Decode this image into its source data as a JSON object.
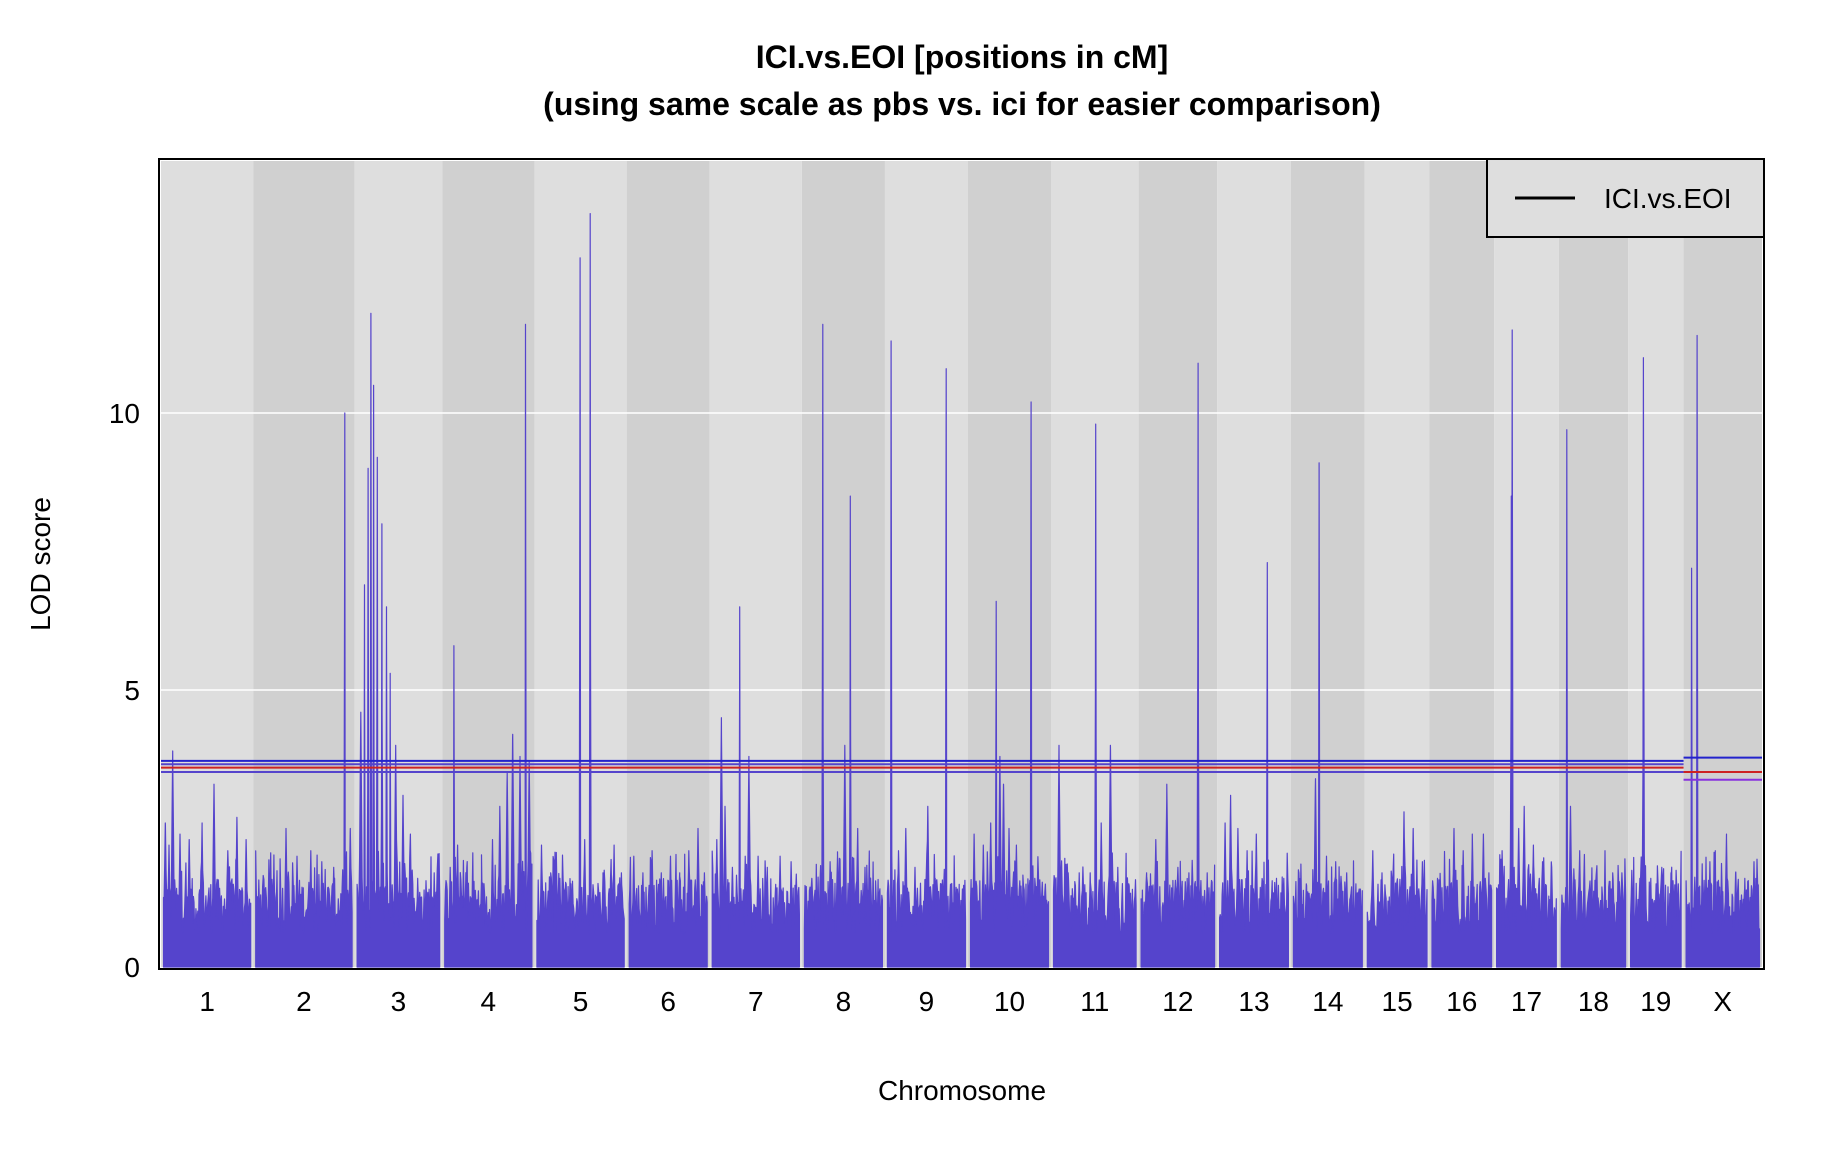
{
  "chart_data": {
    "type": "line",
    "title_line1": "ICI.vs.EOI [positions in cM]",
    "title_line2": "(using same scale as pbs  vs. ici for easier comparison)",
    "xlabel": "Chromosome",
    "ylabel": "LOD score",
    "ylim": [
      0,
      14.55
    ],
    "yticks": [
      0,
      5,
      10
    ],
    "grid": "horizontal",
    "legend_position": "top-right",
    "series": [
      {
        "name": "ICI.vs.EOI",
        "color": "#5544cc"
      }
    ],
    "legend_line_color": "#000000",
    "chromosomes": [
      {
        "label": "1",
        "length": 95,
        "peaks": [
          [
            2,
            2.6
          ],
          [
            6,
            2.2
          ],
          [
            10,
            3.9
          ],
          [
            18,
            2.4
          ],
          [
            28,
            2.3
          ],
          [
            42,
            2.6
          ],
          [
            55,
            3.3
          ],
          [
            70,
            2.1
          ],
          [
            80,
            2.7
          ],
          [
            90,
            2.3
          ]
        ]
      },
      {
        "label": "2",
        "length": 105,
        "peaks": [
          [
            8,
            1.6
          ],
          [
            20,
            1.7
          ],
          [
            33,
            2.5
          ],
          [
            45,
            2.0
          ],
          [
            60,
            2.1
          ],
          [
            72,
            1.9
          ],
          [
            85,
            1.8
          ],
          [
            97,
            10.0
          ],
          [
            103,
            2.5
          ]
        ]
      },
      {
        "label": "3",
        "length": 90,
        "peaks": [
          [
            4,
            4.6
          ],
          [
            8,
            6.9
          ],
          [
            12,
            9.0
          ],
          [
            15,
            11.8
          ],
          [
            18,
            10.5
          ],
          [
            22,
            9.2
          ],
          [
            27,
            8.0
          ],
          [
            32,
            6.5
          ],
          [
            36,
            5.3
          ],
          [
            42,
            4.0
          ],
          [
            50,
            3.1
          ],
          [
            58,
            2.4
          ],
          [
            66,
            1.6
          ],
          [
            74,
            1.2
          ],
          [
            84,
            1.7
          ]
        ]
      },
      {
        "label": "4",
        "length": 95,
        "peaks": [
          [
            6,
            1.8
          ],
          [
            10,
            5.8
          ],
          [
            14,
            2.2
          ],
          [
            24,
            1.8
          ],
          [
            40,
            1.6
          ],
          [
            52,
            2.3
          ],
          [
            60,
            2.9
          ],
          [
            68,
            3.5
          ],
          [
            74,
            4.2
          ],
          [
            82,
            3.8
          ],
          [
            88,
            11.6
          ],
          [
            92,
            3.7
          ]
        ]
      },
      {
        "label": "5",
        "length": 95,
        "peaks": [
          [
            5,
            2.2
          ],
          [
            15,
            1.7
          ],
          [
            25,
            1.6
          ],
          [
            37,
            1.5
          ],
          [
            47,
            12.8
          ],
          [
            52,
            2.3
          ],
          [
            58,
            13.6
          ],
          [
            72,
            1.7
          ],
          [
            84,
            2.2
          ],
          [
            92,
            1.7
          ]
        ]
      },
      {
        "label": "6",
        "length": 85,
        "peaks": [
          [
            5,
            2.0
          ],
          [
            15,
            1.7
          ],
          [
            25,
            2.1
          ],
          [
            35,
            1.7
          ],
          [
            45,
            2.0
          ],
          [
            55,
            1.7
          ],
          [
            65,
            2.1
          ],
          [
            75,
            2.5
          ],
          [
            82,
            1.7
          ]
        ]
      },
      {
        "label": "7",
        "length": 95,
        "peaks": [
          [
            5,
            2.3
          ],
          [
            10,
            4.5
          ],
          [
            14,
            2.9
          ],
          [
            22,
            1.8
          ],
          [
            30,
            6.5
          ],
          [
            36,
            2.0
          ],
          [
            40,
            3.8
          ],
          [
            50,
            2.0
          ],
          [
            60,
            1.8
          ],
          [
            74,
            2.0
          ],
          [
            86,
            1.9
          ]
        ]
      },
      {
        "label": "8",
        "length": 85,
        "peaks": [
          [
            8,
            1.6
          ],
          [
            20,
            11.6
          ],
          [
            28,
            1.9
          ],
          [
            36,
            2.0
          ],
          [
            44,
            4.0
          ],
          [
            50,
            8.5
          ],
          [
            58,
            2.5
          ],
          [
            66,
            1.8
          ],
          [
            76,
            1.2
          ]
        ]
      },
      {
        "label": "9",
        "length": 85,
        "peaks": [
          [
            4,
            11.3
          ],
          [
            12,
            2.1
          ],
          [
            20,
            2.5
          ],
          [
            30,
            1.8
          ],
          [
            44,
            2.9
          ],
          [
            52,
            1.6
          ],
          [
            64,
            10.8
          ],
          [
            70,
            1.3
          ],
          [
            80,
            1.2
          ]
        ]
      },
      {
        "label": "10",
        "length": 85,
        "peaks": [
          [
            4,
            2.4
          ],
          [
            14,
            2.2
          ],
          [
            22,
            2.6
          ],
          [
            28,
            6.6
          ],
          [
            32,
            3.8
          ],
          [
            36,
            3.3
          ],
          [
            42,
            2.5
          ],
          [
            50,
            2.2
          ],
          [
            66,
            10.2
          ],
          [
            74,
            1.7
          ]
        ]
      },
      {
        "label": "11",
        "length": 90,
        "peaks": [
          [
            6,
            4.0
          ],
          [
            16,
            1.7
          ],
          [
            28,
            1.7
          ],
          [
            40,
            1.7
          ],
          [
            46,
            9.8
          ],
          [
            52,
            2.6
          ],
          [
            62,
            4.0
          ],
          [
            70,
            1.8
          ],
          [
            82,
            1.5
          ]
        ]
      },
      {
        "label": "12",
        "length": 80,
        "peaks": [
          [
            6,
            1.7
          ],
          [
            16,
            2.3
          ],
          [
            28,
            3.3
          ],
          [
            40,
            1.8
          ],
          [
            52,
            1.7
          ],
          [
            62,
            10.9
          ],
          [
            72,
            1.7
          ]
        ]
      },
      {
        "label": "13",
        "length": 75,
        "peaks": [
          [
            6,
            2.6
          ],
          [
            12,
            3.1
          ],
          [
            20,
            2.5
          ],
          [
            30,
            2.1
          ],
          [
            40,
            2.4
          ],
          [
            52,
            7.3
          ],
          [
            62,
            1.6
          ],
          [
            70,
            1.6
          ]
        ]
      },
      {
        "label": "14",
        "length": 75,
        "peaks": [
          [
            6,
            1.7
          ],
          [
            14,
            1.5
          ],
          [
            24,
            3.4
          ],
          [
            28,
            9.1
          ],
          [
            36,
            2.0
          ],
          [
            46,
            1.9
          ],
          [
            58,
            1.7
          ],
          [
            68,
            1.5
          ]
        ]
      },
      {
        "label": "15",
        "length": 65,
        "peaks": [
          [
            6,
            2.1
          ],
          [
            16,
            1.7
          ],
          [
            28,
            1.7
          ],
          [
            40,
            2.8
          ],
          [
            50,
            2.5
          ],
          [
            60,
            1.9
          ]
        ]
      },
      {
        "label": "16",
        "length": 65,
        "peaks": [
          [
            6,
            1.6
          ],
          [
            14,
            1.7
          ],
          [
            24,
            2.5
          ],
          [
            34,
            2.1
          ],
          [
            44,
            2.4
          ],
          [
            56,
            2.4
          ],
          [
            62,
            1.7
          ]
        ]
      },
      {
        "label": "17",
        "length": 65,
        "peaks": [
          [
            6,
            2.1
          ],
          [
            16,
            8.5
          ],
          [
            17,
            11.5
          ],
          [
            24,
            2.5
          ],
          [
            30,
            2.9
          ],
          [
            40,
            2.2
          ],
          [
            50,
            1.9
          ],
          [
            60,
            1.8
          ]
        ]
      },
      {
        "label": "18",
        "length": 70,
        "peaks": [
          [
            6,
            9.7
          ],
          [
            10,
            2.9
          ],
          [
            20,
            2.1
          ],
          [
            32,
            1.3
          ],
          [
            44,
            1.2
          ],
          [
            56,
            1.7
          ],
          [
            66,
            1.7
          ]
        ]
      },
      {
        "label": "19",
        "length": 55,
        "peaks": [
          [
            6,
            1.3
          ],
          [
            14,
            11.0
          ],
          [
            22,
            1.6
          ],
          [
            34,
            1.8
          ],
          [
            44,
            1.7
          ],
          [
            52,
            1.5
          ]
        ]
      },
      {
        "label": "X",
        "length": 80,
        "peaks": [
          [
            6,
            7.2
          ],
          [
            12,
            11.4
          ],
          [
            18,
            1.3
          ],
          [
            26,
            1.9
          ],
          [
            36,
            1.4
          ],
          [
            44,
            2.4
          ],
          [
            54,
            1.7
          ],
          [
            64,
            1.6
          ],
          [
            74,
            1.9
          ]
        ]
      }
    ],
    "thresholds": {
      "autosome": [
        {
          "value": 3.72,
          "color": "#2222cc"
        },
        {
          "value": 3.66,
          "color": "#5544cc"
        },
        {
          "value": 3.6,
          "color": "#cc2222"
        },
        {
          "value": 3.52,
          "color": "#5544cc"
        }
      ],
      "x": [
        {
          "value": 3.78,
          "color": "#2222cc"
        },
        {
          "value": 3.52,
          "color": "#cc2222"
        },
        {
          "value": 3.38,
          "color": "#8833dd"
        }
      ]
    }
  }
}
